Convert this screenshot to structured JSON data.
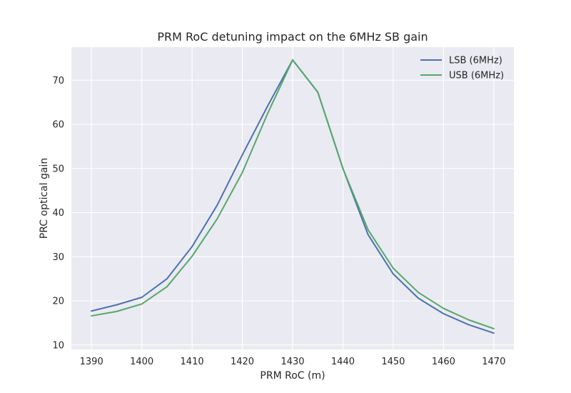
{
  "chart_data": {
    "type": "line",
    "title": "PRM RoC detuning impact on the 6MHz SB gain",
    "xlabel": "PRM RoC (m)",
    "ylabel": "PRC optical gain",
    "x": [
      1390,
      1395,
      1400,
      1405,
      1410,
      1415,
      1420,
      1425,
      1430,
      1435,
      1440,
      1445,
      1450,
      1455,
      1460,
      1465,
      1470
    ],
    "xticks": [
      1390,
      1400,
      1410,
      1420,
      1430,
      1440,
      1450,
      1460,
      1470
    ],
    "yticks": [
      10,
      20,
      30,
      40,
      50,
      60,
      70
    ],
    "xlim": [
      1386,
      1474
    ],
    "ylim": [
      9,
      77.5
    ],
    "grid": true,
    "legend_position": "top-right",
    "series": [
      {
        "name": "LSB (6MHz)",
        "color": "#4c72b0",
        "values": [
          17.7,
          19.1,
          20.8,
          25.0,
          32.3,
          41.7,
          53.1,
          64.1,
          74.6,
          67.3,
          50.0,
          35.0,
          26.1,
          20.6,
          17.1,
          14.6,
          12.7
        ]
      },
      {
        "name": "USB (6MHz)",
        "color": "#55a868",
        "values": [
          16.6,
          17.6,
          19.3,
          23.2,
          30.1,
          38.6,
          49.1,
          62.4,
          74.6,
          67.3,
          50.0,
          36.1,
          27.4,
          21.9,
          18.3,
          15.7,
          13.7
        ]
      }
    ]
  }
}
